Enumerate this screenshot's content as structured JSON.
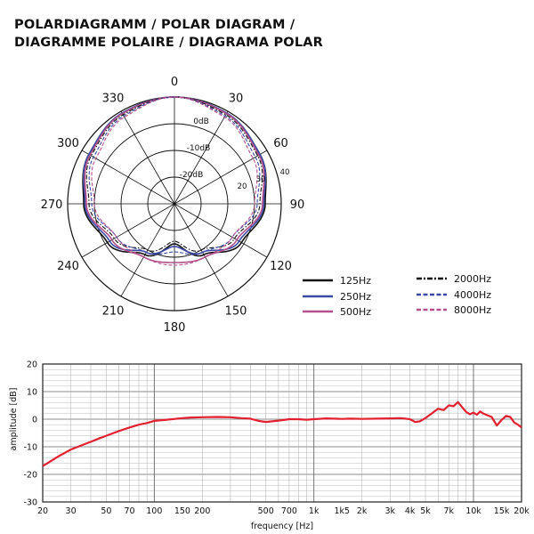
{
  "header": {
    "title_line1": "POLARDIAGRAMM / POLAR DIAGRAM /",
    "title_line2": "DIAGRAMME POLAIRE / DIAGRAMA POLAR"
  },
  "chart_data": [
    {
      "type": "polar",
      "angle_labels": [
        "0",
        "30",
        "60",
        "90",
        "120",
        "150",
        "180",
        "210",
        "240",
        "270",
        "300",
        "330"
      ],
      "angles_deg": [
        0,
        30,
        60,
        90,
        120,
        150,
        180,
        210,
        240,
        270,
        300,
        330
      ],
      "ring_labels": [
        "0dB",
        "-10dB",
        "-20dB",
        "20",
        "30",
        "40"
      ],
      "rlim_db": [
        -40,
        0
      ],
      "pattern": "cardioid",
      "legend_placement": "bottom-right",
      "series": [
        {
          "name": "125Hz",
          "color": "#111111",
          "dash": "solid",
          "angles": [
            0,
            30,
            60,
            90,
            120,
            150,
            180,
            210,
            240,
            270,
            300,
            330
          ],
          "values_db": [
            0,
            -0.8,
            -3,
            -6,
            -11,
            -18,
            -25,
            -18,
            -11,
            -6,
            -3,
            -0.8
          ]
        },
        {
          "name": "250Hz",
          "color": "#3a4aa5",
          "dash": "solid",
          "angles": [
            0,
            30,
            60,
            90,
            120,
            150,
            180,
            210,
            240,
            270,
            300,
            330
          ],
          "values_db": [
            0,
            -0.8,
            -3,
            -6.5,
            -12,
            -19,
            -24,
            -19,
            -12,
            -6.5,
            -3,
            -0.8
          ]
        },
        {
          "name": "500Hz",
          "color": "#b4508c",
          "dash": "solid",
          "angles": [
            0,
            30,
            60,
            90,
            120,
            150,
            180,
            210,
            240,
            270,
            300,
            330
          ],
          "values_db": [
            0,
            -1,
            -3.5,
            -7,
            -13,
            -17,
            -18,
            -17,
            -13,
            -7,
            -3.5,
            -1
          ]
        },
        {
          "name": "2000Hz",
          "color": "#111111",
          "dash": "dashdot",
          "angles": [
            0,
            30,
            60,
            90,
            120,
            150,
            180,
            210,
            240,
            270,
            300,
            330
          ],
          "values_db": [
            0,
            -1.5,
            -4,
            -8,
            -14,
            -20,
            -26,
            -20,
            -14,
            -8,
            -4,
            -1.5
          ]
        },
        {
          "name": "4000Hz",
          "color": "#3a4aa5",
          "dash": "dashed",
          "angles": [
            0,
            30,
            60,
            90,
            120,
            150,
            180,
            210,
            240,
            270,
            300,
            330
          ],
          "values_db": [
            0,
            -2,
            -5,
            -9,
            -15,
            -19,
            -22,
            -19,
            -15,
            -9,
            -5,
            -2
          ]
        },
        {
          "name": "8000Hz",
          "color": "#b4508c",
          "dash": "dashed",
          "angles": [
            0,
            30,
            60,
            90,
            120,
            150,
            180,
            210,
            240,
            270,
            300,
            330
          ],
          "values_db": [
            0,
            -2.5,
            -6,
            -10,
            -15,
            -17,
            -17,
            -17,
            -15,
            -10,
            -6,
            -2.5
          ]
        }
      ]
    },
    {
      "type": "line",
      "xlabel": "frequency [Hz]",
      "ylabel": "amplitude [dB]",
      "x_scale": "log",
      "xlim": [
        20,
        20000
      ],
      "ylim": [
        -30,
        20
      ],
      "grid": true,
      "x_tick_labels": [
        {
          "v": 20,
          "t": "20"
        },
        {
          "v": 30,
          "t": "30"
        },
        {
          "v": 50,
          "t": "50"
        },
        {
          "v": 70,
          "t": "70"
        },
        {
          "v": 100,
          "t": "100"
        },
        {
          "v": 150,
          "t": "150"
        },
        {
          "v": 200,
          "t": "200"
        },
        {
          "v": 500,
          "t": "500"
        },
        {
          "v": 700,
          "t": "700"
        },
        {
          "v": 1000,
          "t": "1k"
        },
        {
          "v": 1500,
          "t": "1k5"
        },
        {
          "v": 2000,
          "t": "2k"
        },
        {
          "v": 3000,
          "t": "3k"
        },
        {
          "v": 4000,
          "t": "4k"
        },
        {
          "v": 5000,
          "t": "5k"
        },
        {
          "v": 7000,
          "t": "7k"
        },
        {
          "v": 10000,
          "t": "10k"
        },
        {
          "v": 15000,
          "t": "15k"
        },
        {
          "v": 20000,
          "t": "20k"
        }
      ],
      "y_ticks": [
        20,
        10,
        0,
        -10,
        -20,
        -30
      ],
      "series": [
        {
          "color": "#e2202f",
          "x": [
            20,
            25,
            30,
            35,
            40,
            45,
            50,
            60,
            70,
            80,
            90,
            100,
            120,
            150,
            170,
            200,
            250,
            300,
            350,
            400,
            450,
            500,
            600,
            700,
            800,
            900,
            1000,
            1200,
            1500,
            1700,
            2000,
            2500,
            3000,
            3500,
            4000,
            4300,
            4600,
            5000,
            5500,
            6000,
            6500,
            7000,
            7500,
            8000,
            8500,
            9000,
            9500,
            10000,
            10500,
            11000,
            11500,
            12000,
            13000,
            14000,
            15000,
            16000,
            17000,
            18000,
            19000,
            20000
          ],
          "y": [
            -17,
            -13.5,
            -11,
            -9.5,
            -8.2,
            -7,
            -6,
            -4.3,
            -3,
            -2,
            -1.4,
            -0.6,
            -0.2,
            0.4,
            0.6,
            0.7,
            0.8,
            0.7,
            0.4,
            0.2,
            -0.6,
            -1,
            -0.5,
            0,
            0,
            -0.2,
            0,
            0.3,
            0.1,
            0.2,
            0.1,
            0.2,
            0.3,
            0.4,
            0,
            -1,
            -0.8,
            0.4,
            2.2,
            3.8,
            3.3,
            5,
            4.7,
            6.2,
            4.3,
            2.6,
            1.8,
            2.4,
            1.6,
            2.8,
            2.1,
            1.6,
            0.8,
            -2.3,
            -0.3,
            1.2,
            0.8,
            -1.2,
            -2,
            -3
          ]
        }
      ]
    }
  ]
}
